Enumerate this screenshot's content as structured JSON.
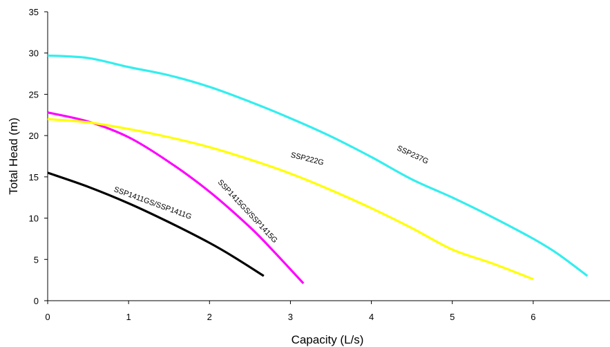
{
  "chart_data": {
    "type": "line",
    "title": "",
    "xlabel": "Capacity (L/s)",
    "ylabel": "Total Head (m)",
    "xlim": [
      0,
      7
    ],
    "ylim": [
      0,
      35
    ],
    "xticks": [
      0,
      1,
      2,
      3,
      4,
      5,
      6
    ],
    "yticks": [
      0,
      5,
      10,
      15,
      20,
      25,
      30,
      35
    ],
    "grid": false,
    "legend": "none (curves labelled inline)",
    "series": [
      {
        "name": "SSP1411GS/SSP1411G",
        "color": "#000000",
        "x": [
          0,
          0.5,
          1.0,
          1.5,
          2.0,
          2.3,
          2.67
        ],
        "y": [
          15.5,
          13.8,
          11.8,
          9.5,
          7.0,
          5.3,
          3.0
        ]
      },
      {
        "name": "SSP1415GS/SSP1415G",
        "color": "#ff00ff",
        "x": [
          0,
          0.5,
          1.0,
          1.5,
          2.0,
          2.5,
          2.8,
          3.16
        ],
        "y": [
          22.8,
          21.7,
          19.8,
          16.8,
          13.2,
          8.9,
          5.9,
          2.1
        ]
      },
      {
        "name": "SSP222G",
        "color": "#ffff00",
        "x": [
          0,
          0.5,
          1,
          1.5,
          2,
          2.5,
          3,
          3.5,
          4,
          4.5,
          5,
          5.5,
          6.0
        ],
        "y": [
          22.0,
          21.6,
          20.8,
          19.8,
          18.6,
          17.1,
          15.4,
          13.4,
          11.2,
          8.8,
          6.2,
          4.5,
          2.6
        ]
      },
      {
        "name": "SSP237G",
        "color": "#33eeee",
        "x": [
          0,
          0.5,
          1,
          1.5,
          2,
          2.5,
          3,
          3.5,
          4,
          4.5,
          5,
          5.5,
          6,
          6.3,
          6.67
        ],
        "y": [
          29.7,
          29.4,
          28.3,
          27.3,
          25.9,
          24.1,
          22.1,
          19.9,
          17.4,
          14.7,
          12.5,
          10.1,
          7.5,
          5.7,
          3.0
        ]
      }
    ]
  }
}
